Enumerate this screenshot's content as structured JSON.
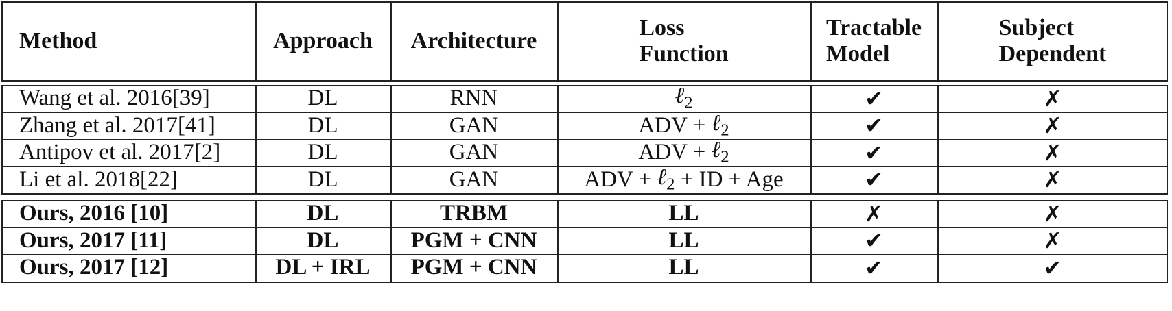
{
  "table": {
    "headers": [
      {
        "lines": [
          "Method"
        ]
      },
      {
        "lines": [
          "Approach"
        ]
      },
      {
        "lines": [
          "Architecture"
        ]
      },
      {
        "lines": [
          "Loss",
          "Function"
        ]
      },
      {
        "lines": [
          "Tractable",
          "Model"
        ]
      },
      {
        "lines": [
          "Subject",
          "Dependent"
        ]
      }
    ],
    "group1": [
      {
        "method": "Wang et al. 2016 ",
        "ref": "[39]",
        "approach": "DL",
        "architecture": "RNN",
        "loss_pre": "",
        "loss_l2": "ℓ",
        "loss_sub": "2",
        "loss_post": "",
        "tractable": "✔",
        "subject": "✗"
      },
      {
        "method": "Zhang et al. 2017 ",
        "ref": "[41]",
        "approach": "DL",
        "architecture": "GAN",
        "loss_pre": "ADV + ",
        "loss_l2": "ℓ",
        "loss_sub": "2",
        "loss_post": "",
        "tractable": "✔",
        "subject": "✗"
      },
      {
        "method": "Antipov et al. 2017 ",
        "ref": "[2]",
        "approach": "DL",
        "architecture": "GAN",
        "loss_pre": "ADV + ",
        "loss_l2": "ℓ",
        "loss_sub": "2",
        "loss_post": "",
        "tractable": "✔",
        "subject": "✗"
      },
      {
        "method": "Li et al. 2018 ",
        "ref": "[22]",
        "approach": "DL",
        "architecture": "GAN",
        "loss_pre": "ADV + ",
        "loss_l2": "ℓ",
        "loss_sub": "2",
        "loss_post": " + ID + Age",
        "tractable": "✔",
        "subject": "✗"
      }
    ],
    "group2": [
      {
        "method": "Ours, 2016 ",
        "ref": "[10]",
        "approach": "DL",
        "architecture": "TRBM",
        "loss": "LL",
        "tractable": "✗",
        "subject": "✗"
      },
      {
        "method": "Ours, 2017 ",
        "ref": "[11]",
        "approach": "DL",
        "architecture": "PGM + CNN",
        "loss": "LL",
        "tractable": "✔",
        "subject": "✗"
      },
      {
        "method": "Ours, 2017 ",
        "ref": "[12]",
        "approach": "DL + IRL",
        "architecture": "PGM + CNN",
        "loss": "LL",
        "tractable": "✔",
        "subject": "✔"
      }
    ]
  }
}
